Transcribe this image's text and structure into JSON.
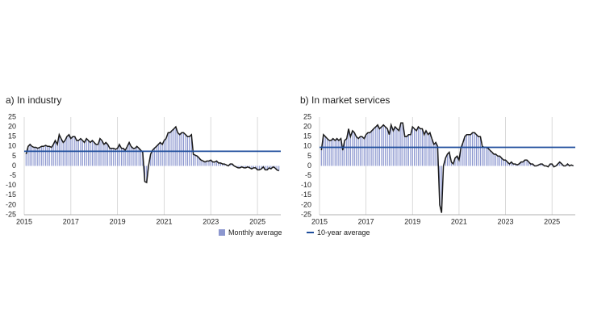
{
  "chart_data": [
    {
      "type": "bar",
      "title": "a)  In industry",
      "x": [
        2015.08,
        2015.17,
        2015.25,
        2015.33,
        2015.42,
        2015.5,
        2015.58,
        2015.67,
        2015.75,
        2015.83,
        2015.92,
        2016,
        2016.08,
        2016.17,
        2016.25,
        2016.33,
        2016.42,
        2016.5,
        2016.58,
        2016.67,
        2016.75,
        2016.83,
        2016.92,
        2017,
        2017.08,
        2017.17,
        2017.25,
        2017.33,
        2017.42,
        2017.5,
        2017.58,
        2017.67,
        2017.75,
        2017.83,
        2017.92,
        2018,
        2018.08,
        2018.17,
        2018.25,
        2018.33,
        2018.42,
        2018.5,
        2018.58,
        2018.67,
        2018.75,
        2018.83,
        2018.92,
        2019,
        2019.08,
        2019.17,
        2019.25,
        2019.33,
        2019.42,
        2019.5,
        2019.58,
        2019.67,
        2019.75,
        2019.83,
        2019.92,
        2020,
        2020.08,
        2020.17,
        2020.25,
        2020.33,
        2020.42,
        2020.5,
        2020.58,
        2020.67,
        2020.75,
        2020.83,
        2020.92,
        2021,
        2021.08,
        2021.17,
        2021.25,
        2021.33,
        2021.42,
        2021.5,
        2021.58,
        2021.67,
        2021.75,
        2021.83,
        2021.92,
        2022,
        2022.08,
        2022.17,
        2022.25,
        2022.33,
        2022.42,
        2022.5,
        2022.58,
        2022.67,
        2022.75,
        2022.83,
        2022.92,
        2023,
        2023.08,
        2023.17,
        2023.25,
        2023.33,
        2023.42,
        2023.5,
        2023.58,
        2023.67,
        2023.75,
        2023.83,
        2023.92,
        2024,
        2024.08,
        2024.17,
        2024.25,
        2024.33,
        2024.42,
        2024.5,
        2024.58,
        2024.67,
        2024.75,
        2024.83,
        2024.92,
        2025,
        2025.08,
        2025.17,
        2025.25,
        2025.33,
        2025.42,
        2025.5,
        2025.58,
        2025.67,
        2025.75,
        2025.83,
        2025.92
      ],
      "series": [
        {
          "name": "Monthly average",
          "color": "#8c97cf",
          "line_color": "#1a1a1a",
          "values": [
            6,
            10,
            11,
            10,
            9.5,
            9.5,
            9,
            9.5,
            10,
            10,
            10.5,
            10,
            10,
            9.5,
            11,
            13,
            11,
            16,
            14,
            12,
            13,
            15,
            16,
            14,
            15,
            15,
            13,
            13,
            14,
            13,
            12,
            14,
            13,
            12,
            13,
            12,
            11,
            11,
            14,
            13,
            11,
            12,
            11,
            9,
            9,
            9,
            8.5,
            9,
            11,
            9,
            9,
            8,
            10,
            12,
            10,
            9,
            9,
            10,
            9,
            8,
            7,
            -8,
            -8.5,
            0,
            6,
            8,
            9,
            10,
            11,
            12,
            11,
            13,
            14,
            17,
            17,
            18,
            19,
            20,
            17,
            16,
            17,
            17,
            16,
            15,
            15,
            16,
            6,
            5.5,
            5,
            4,
            3,
            2.5,
            2,
            2.5,
            2.5,
            3,
            2,
            2,
            2.5,
            1.5,
            1.5,
            1,
            1,
            0.5,
            0,
            1,
            1,
            0,
            -0.5,
            -1,
            -1,
            -0.5,
            -1,
            -1,
            -0.5,
            -1,
            -1.5,
            -1,
            -1,
            -2,
            -2,
            -1.5,
            -0.5,
            -2,
            -2,
            -1,
            -1.5,
            -0.5,
            -1,
            -2,
            -2.5
          ]
        }
      ],
      "reference": {
        "value": 7.5,
        "color": "#1f4e9c"
      },
      "xlim": [
        2015,
        2026
      ],
      "xticks": [
        2015,
        2017,
        2019,
        2021,
        2023,
        2025
      ],
      "ylim": [
        -25,
        25
      ],
      "yticks": [
        25,
        20,
        15,
        10,
        5,
        0,
        -5,
        -10,
        -15,
        -20,
        -25
      ],
      "grid": true
    },
    {
      "type": "bar",
      "title": "b)  In market services",
      "x": [
        2015.08,
        2015.17,
        2015.25,
        2015.33,
        2015.42,
        2015.5,
        2015.58,
        2015.67,
        2015.75,
        2015.83,
        2015.92,
        2016,
        2016.08,
        2016.17,
        2016.25,
        2016.33,
        2016.42,
        2016.5,
        2016.58,
        2016.67,
        2016.75,
        2016.83,
        2016.92,
        2017,
        2017.08,
        2017.17,
        2017.25,
        2017.33,
        2017.42,
        2017.5,
        2017.58,
        2017.67,
        2017.75,
        2017.83,
        2017.92,
        2018,
        2018.08,
        2018.17,
        2018.25,
        2018.33,
        2018.42,
        2018.5,
        2018.58,
        2018.67,
        2018.75,
        2018.83,
        2018.92,
        2019,
        2019.08,
        2019.17,
        2019.25,
        2019.33,
        2019.42,
        2019.5,
        2019.58,
        2019.67,
        2019.75,
        2019.83,
        2019.92,
        2020,
        2020.08,
        2020.17,
        2020.25,
        2020.33,
        2020.42,
        2020.5,
        2020.58,
        2020.67,
        2020.75,
        2020.83,
        2020.92,
        2021,
        2021.08,
        2021.17,
        2021.25,
        2021.33,
        2021.42,
        2021.5,
        2021.58,
        2021.67,
        2021.75,
        2021.83,
        2021.92,
        2022,
        2022.08,
        2022.17,
        2022.25,
        2022.33,
        2022.42,
        2022.5,
        2022.58,
        2022.67,
        2022.75,
        2022.83,
        2022.92,
        2023,
        2023.08,
        2023.17,
        2023.25,
        2023.33,
        2023.42,
        2023.5,
        2023.58,
        2023.67,
        2023.75,
        2023.83,
        2023.92,
        2024,
        2024.08,
        2024.17,
        2024.25,
        2024.33,
        2024.42,
        2024.5,
        2024.58,
        2024.67,
        2024.75,
        2024.83,
        2024.92,
        2025,
        2025.08,
        2025.17,
        2025.25,
        2025.33,
        2025.42,
        2025.5,
        2025.58,
        2025.67,
        2025.75,
        2025.83,
        2025.92
      ],
      "series": [
        {
          "color": "#8c97cf",
          "line_color": "#1a1a1a",
          "values": [
            8,
            16,
            15,
            14,
            13,
            13,
            14,
            13,
            14,
            13,
            14,
            8,
            13,
            14,
            19,
            15,
            18,
            17,
            15,
            14,
            15,
            15,
            14,
            16,
            17,
            17,
            18,
            19,
            20,
            21,
            19,
            20,
            21,
            20,
            19,
            16,
            21,
            18,
            20,
            19,
            18,
            22,
            22,
            15,
            15,
            16,
            16,
            20,
            19,
            18,
            20,
            19,
            19,
            16,
            18,
            16,
            17,
            14,
            11,
            12,
            10,
            -20,
            -24,
            0,
            4,
            6,
            7,
            2,
            1,
            4,
            5,
            3,
            9,
            12,
            15,
            16,
            16,
            16,
            17,
            17,
            16,
            15,
            15,
            10,
            9.5,
            9.5,
            9,
            8,
            7,
            6,
            6,
            5,
            5,
            4,
            3,
            3,
            2,
            1,
            2,
            1,
            1,
            0.5,
            1,
            2,
            2,
            3,
            3,
            2,
            1,
            1,
            0,
            0,
            0.5,
            1,
            1,
            0,
            0,
            -0.5,
            1,
            1,
            -0.5,
            0,
            1,
            2,
            1,
            0,
            0,
            1,
            0,
            0.5,
            0
          ]
        }
      ],
      "reference": {
        "name": "10-year average",
        "value": 9.5,
        "color": "#1f4e9c"
      },
      "xlim": [
        2015,
        2026
      ],
      "xticks": [
        2015,
        2017,
        2019,
        2021,
        2023,
        2025
      ],
      "ylim": [
        -25,
        25
      ],
      "yticks": [
        25,
        20,
        15,
        10,
        5,
        0,
        -5,
        -10,
        -15,
        -20,
        -25
      ],
      "grid": true
    }
  ]
}
